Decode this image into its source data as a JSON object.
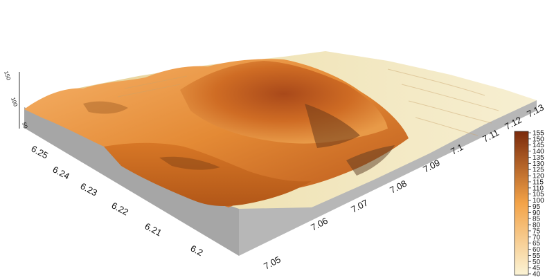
{
  "map": {
    "type": "3d-terrain-surface",
    "colormap": {
      "low_color": "#fbf4d6",
      "mid_color": "#f3a348",
      "high_color": "#7a2a0c",
      "min": 40,
      "max": 155,
      "step": 5,
      "labels": [
        "155",
        "150",
        "145",
        "140",
        "135",
        "130",
        "125",
        "120",
        "115",
        "110",
        "105",
        "100",
        "95",
        "90",
        "85",
        "80",
        "75",
        "70",
        "65",
        "60",
        "55",
        "50",
        "45",
        "40"
      ]
    },
    "y_axis": {
      "labels": [
        "6.25",
        "6.24",
        "6.23",
        "6.22",
        "6.21",
        "6.2"
      ]
    },
    "x_axis": {
      "labels": [
        "7.05",
        "7.06",
        "7.07",
        "7.08",
        "7.09",
        "7.1",
        "7.11",
        "7.12",
        "7.13"
      ]
    },
    "z_axis": {
      "labels": [
        "150",
        "100",
        "50"
      ]
    },
    "side_wall_color": "#a6a6a6"
  }
}
